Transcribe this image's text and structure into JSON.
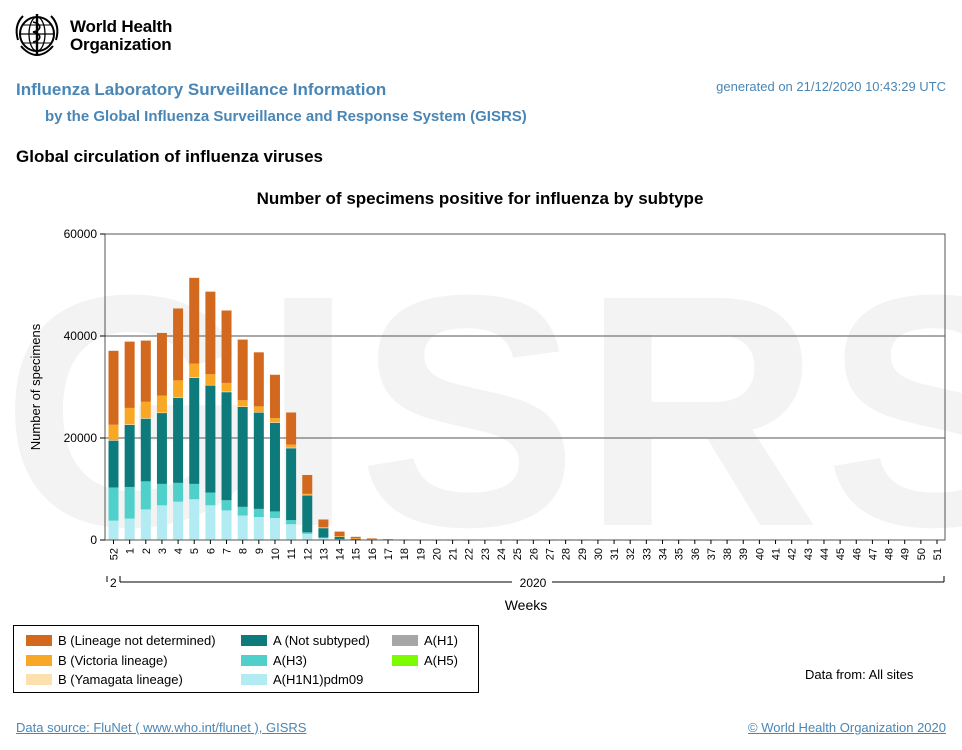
{
  "header": {
    "org_name_line1": "World Health",
    "org_name_line2": "Organization",
    "title": "Influenza Laboratory Surveillance Information",
    "subtitle": "by the Global Influenza Surveillance and Response System (GISRS)",
    "generated": "generated on 21/12/2020 10:43:29 UTC",
    "section_title": "Global circulation of influenza viruses"
  },
  "chart_data": {
    "type": "bar",
    "stacked": true,
    "title": "Number of specimens positive for influenza by subtype",
    "ylabel": "Number of specimens",
    "xlabel": "Weeks",
    "ylim": [
      0,
      60000
    ],
    "yticks": [
      0,
      20000,
      40000,
      60000
    ],
    "grid": true,
    "watermark": "GISRS",
    "year_labels": {
      "prev": "2",
      "current": "2020"
    },
    "categories": [
      "52",
      "1",
      "2",
      "3",
      "4",
      "5",
      "6",
      "7",
      "8",
      "9",
      "10",
      "11",
      "12",
      "13",
      "14",
      "15",
      "16",
      "17",
      "18",
      "19",
      "20",
      "21",
      "22",
      "23",
      "24",
      "25",
      "26",
      "27",
      "28",
      "29",
      "30",
      "31",
      "32",
      "33",
      "34",
      "35",
      "36",
      "37",
      "38",
      "39",
      "40",
      "41",
      "42",
      "43",
      "44",
      "45",
      "46",
      "47",
      "48",
      "49",
      "50",
      "51"
    ],
    "series": [
      {
        "name": "A(H1N1)pdm09",
        "color": "#b2ebf2",
        "values": [
          3800,
          4200,
          6000,
          6800,
          7500,
          8000,
          6800,
          5800,
          4800,
          4500,
          4300,
          3100,
          1200,
          400,
          150,
          80,
          40,
          20,
          10,
          5,
          0,
          0,
          0,
          0,
          0,
          0,
          0,
          0,
          0,
          0,
          0,
          0,
          0,
          0,
          0,
          0,
          0,
          0,
          0,
          0,
          0,
          0,
          0,
          0,
          0,
          0,
          0,
          0,
          0,
          0,
          0,
          0
        ]
      },
      {
        "name": "A(H3)",
        "color": "#4fd0cb",
        "values": [
          6500,
          6200,
          5500,
          4200,
          3700,
          3000,
          2500,
          2000,
          1700,
          1600,
          1300,
          800,
          300,
          100,
          50,
          20,
          10,
          5,
          0,
          0,
          0,
          0,
          0,
          0,
          0,
          0,
          0,
          0,
          0,
          0,
          0,
          0,
          0,
          0,
          0,
          0,
          0,
          0,
          0,
          0,
          0,
          0,
          0,
          0,
          0,
          0,
          0,
          0,
          0,
          0,
          0,
          0
        ]
      },
      {
        "name": "A(Not subtyped)",
        "color": "#0d7b7b",
        "values": [
          9200,
          12200,
          12300,
          13900,
          16700,
          20800,
          21000,
          21200,
          19600,
          18900,
          17400,
          14100,
          7300,
          1900,
          500,
          200,
          100,
          50,
          30,
          20,
          10,
          10,
          10,
          10,
          10,
          10,
          10,
          10,
          10,
          10,
          10,
          10,
          10,
          10,
          10,
          10,
          10,
          10,
          10,
          20,
          20,
          20,
          20,
          20,
          20,
          20,
          20,
          20,
          20,
          20,
          20,
          20
        ]
      },
      {
        "name": "A(H1)",
        "color": "#a6a6a6",
        "values": [
          0,
          0,
          0,
          0,
          0,
          0,
          0,
          0,
          0,
          0,
          0,
          0,
          0,
          0,
          0,
          0,
          0,
          0,
          0,
          0,
          0,
          0,
          0,
          0,
          0,
          0,
          0,
          0,
          0,
          0,
          0,
          0,
          0,
          0,
          0,
          0,
          0,
          0,
          0,
          0,
          0,
          0,
          0,
          0,
          0,
          0,
          0,
          0,
          0,
          0,
          0,
          0
        ]
      },
      {
        "name": "A(H5)",
        "color": "#7cfc00",
        "values": [
          0,
          0,
          0,
          0,
          0,
          0,
          0,
          0,
          0,
          0,
          0,
          0,
          0,
          0,
          0,
          0,
          0,
          0,
          0,
          0,
          0,
          0,
          0,
          0,
          0,
          0,
          0,
          0,
          0,
          0,
          0,
          0,
          0,
          0,
          0,
          0,
          0,
          0,
          0,
          0,
          0,
          0,
          0,
          0,
          0,
          0,
          0,
          0,
          0,
          0,
          0,
          0
        ]
      },
      {
        "name": "B (Yamagata lineage)",
        "color": "#fde0b0",
        "values": [
          100,
          100,
          100,
          100,
          100,
          100,
          100,
          100,
          100,
          100,
          100,
          100,
          50,
          20,
          10,
          5,
          0,
          0,
          0,
          0,
          0,
          0,
          0,
          0,
          0,
          0,
          0,
          0,
          0,
          0,
          0,
          0,
          0,
          0,
          0,
          0,
          0,
          0,
          0,
          0,
          0,
          0,
          0,
          0,
          0,
          0,
          0,
          0,
          0,
          0,
          0,
          0
        ]
      },
      {
        "name": "B (Victoria lineage)",
        "color": "#f9a825",
        "values": [
          3000,
          3200,
          3200,
          3300,
          3300,
          2700,
          2100,
          1700,
          1200,
          1100,
          800,
          600,
          200,
          100,
          40,
          20,
          10,
          10,
          10,
          10,
          10,
          10,
          10,
          10,
          10,
          10,
          10,
          10,
          10,
          10,
          10,
          10,
          10,
          10,
          10,
          10,
          10,
          10,
          10,
          10,
          10,
          10,
          10,
          10,
          10,
          10,
          10,
          10,
          10,
          10,
          10,
          10
        ]
      },
      {
        "name": "B (Lineage not determined)",
        "color": "#d2691e",
        "values": [
          14500,
          13000,
          12000,
          12300,
          14100,
          16800,
          16200,
          14200,
          11900,
          10600,
          8500,
          6300,
          3700,
          1500,
          900,
          300,
          150,
          80,
          60,
          40,
          30,
          30,
          30,
          30,
          30,
          30,
          30,
          30,
          30,
          30,
          30,
          30,
          30,
          30,
          30,
          30,
          30,
          30,
          30,
          30,
          30,
          40,
          40,
          40,
          40,
          40,
          40,
          40,
          40,
          40,
          40,
          40
        ]
      }
    ]
  },
  "legend": {
    "items": [
      {
        "label": "B (Lineage not determined)",
        "color": "#d2691e"
      },
      {
        "label": "B (Victoria lineage)",
        "color": "#f9a825"
      },
      {
        "label": "B (Yamagata lineage)",
        "color": "#fde0b0"
      },
      {
        "label": "A (Not subtyped)",
        "color": "#0d7b7b"
      },
      {
        "label": "A(H3)",
        "color": "#4fd0cb"
      },
      {
        "label": "A(H1N1)pdm09",
        "color": "#b2ebf2"
      },
      {
        "label": "A(H1)",
        "color": "#a6a6a6"
      },
      {
        "label": "A(H5)",
        "color": "#7cfc00"
      }
    ]
  },
  "data_from": "Data from: All sites",
  "footer": {
    "source": "Data source: FluNet ( www.who.int/flunet ), GISRS",
    "copyright": "© World Health Organization 2020"
  }
}
